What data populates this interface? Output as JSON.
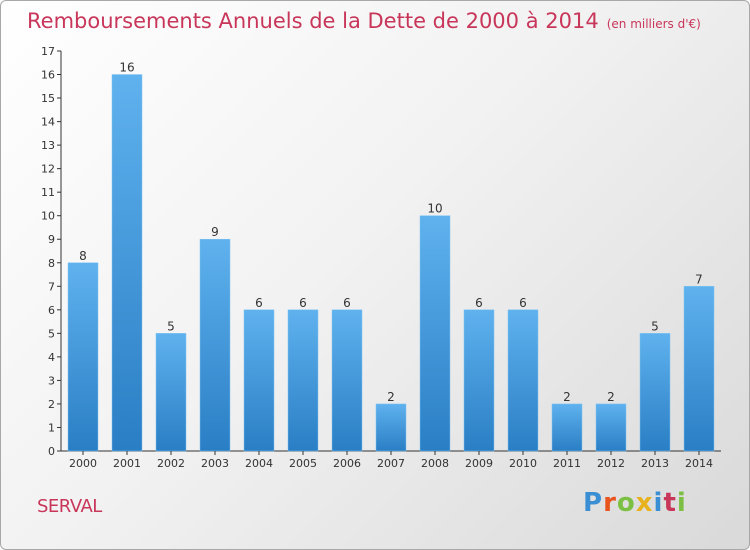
{
  "header": {
    "title": "Remboursements Annuels de la Dette de 2000 à 2014",
    "subtitle": "(en milliers d'€)"
  },
  "commune": "SERVAL",
  "logo": {
    "text": "Proxiti",
    "letter_colors": [
      "#3a8fd4",
      "#e8541e",
      "#7cc043",
      "#e8b21e",
      "#3a8fd4",
      "#c8365a",
      "#7cc043"
    ]
  },
  "colors": {
    "accent": "#c8365a",
    "bar_top": "#5fb2ee",
    "bar_bottom": "#2a7ec4"
  },
  "chart_data": {
    "type": "bar",
    "categories": [
      "2000",
      "2001",
      "2002",
      "2003",
      "2004",
      "2005",
      "2006",
      "2007",
      "2008",
      "2009",
      "2010",
      "2011",
      "2012",
      "2013",
      "2014"
    ],
    "values": [
      8,
      16,
      5,
      9,
      6,
      6,
      6,
      2,
      10,
      6,
      6,
      2,
      2,
      5,
      7
    ],
    "title": "Remboursements Annuels de la Dette de 2000 à 2014",
    "xlabel": "",
    "ylabel": "",
    "ylim": [
      0,
      17
    ],
    "yticks": [
      0,
      1,
      2,
      3,
      4,
      5,
      6,
      7,
      8,
      9,
      10,
      11,
      12,
      13,
      14,
      15,
      16,
      17
    ],
    "grid": false,
    "data_labels": true
  }
}
